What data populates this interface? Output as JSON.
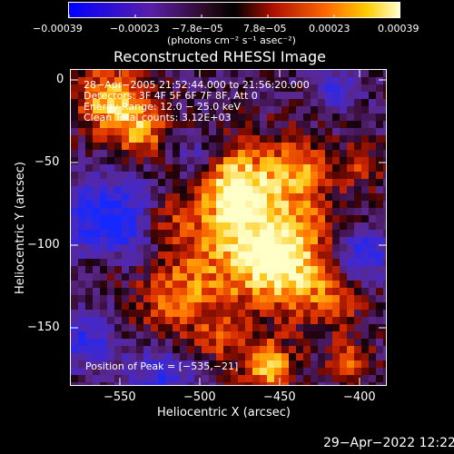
{
  "colorbar": {
    "ticks": [
      "−0.00039",
      "−0.00023",
      "−7.8e−05",
      "7.8e−05",
      "0.00023",
      "0.00039"
    ],
    "units": "(photons cm⁻² s⁻¹ asec⁻²)"
  },
  "title": "Reconstructed RHESSI Image",
  "overlay": {
    "time_range": "28−Apr−2005 21:52:44.000 to 21:56:20.000",
    "detectors": "Detectors: 3F 4F 5F 6F 7F 8F, Att 0",
    "energy": "Energy Range: 12.0 − 25.0 keV",
    "clean": "Clean    Total counts: 3.12E+03",
    "peak": "Position of Peak = [−535,−21]"
  },
  "xaxis": {
    "label": "Heliocentric X (arcsec)",
    "ticks": [
      "−550",
      "−500",
      "−450",
      "−400"
    ]
  },
  "yaxis": {
    "label": "Heliocentric Y (arcsec)",
    "ticks": [
      "0",
      "−50",
      "−100",
      "−150"
    ]
  },
  "footer": {
    "timestamp": "29−Apr−2022 12:22"
  }
}
